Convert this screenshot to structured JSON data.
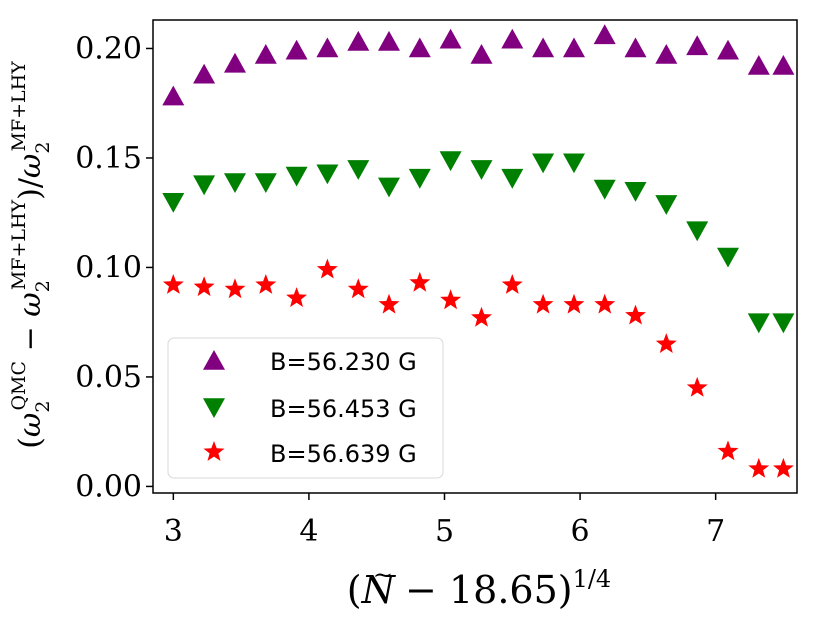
{
  "chart_data": {
    "type": "scatter",
    "xlabel": {
      "open": "(",
      "N": "N",
      "tilde": "~",
      "rest": " − 18.65)",
      "exp": "1/4"
    },
    "ylabel": {
      "open": "(",
      "omega1": "ω",
      "sub1": "2",
      "sup1": "QMC",
      "minus": " − ",
      "omega2": "ω",
      "sub2": "2",
      "sup2": "MF+LHY",
      "mid": ")/",
      "omega3": "ω",
      "sub3": "2",
      "sup3": "MF+LHY"
    },
    "xlim": [
      2.85,
      7.6
    ],
    "ylim": [
      -0.003,
      0.213
    ],
    "x_ticks": [
      3,
      4,
      5,
      6,
      7
    ],
    "x_tick_labels": [
      "3",
      "4",
      "5",
      "6",
      "7"
    ],
    "y_ticks": [
      0.0,
      0.05,
      0.1,
      0.15,
      0.2
    ],
    "y_tick_labels": [
      "0.00",
      "0.05",
      "0.10",
      "0.15",
      "0.20"
    ],
    "legend_position": "lower-left",
    "series": [
      {
        "name": "B=56.230 G",
        "marker": "triangle-up",
        "color": "#800080",
        "x": [
          3.0,
          3.227,
          3.455,
          3.682,
          3.909,
          4.136,
          4.364,
          4.591,
          4.818,
          5.045,
          5.273,
          5.5,
          5.727,
          5.955,
          6.182,
          6.409,
          6.636,
          6.864,
          7.091,
          7.318,
          7.5
        ],
        "y": [
          0.178,
          0.188,
          0.193,
          0.197,
          0.199,
          0.2,
          0.203,
          0.203,
          0.2,
          0.204,
          0.197,
          0.204,
          0.2,
          0.2,
          0.206,
          0.2,
          0.197,
          0.201,
          0.199,
          0.192,
          0.192
        ]
      },
      {
        "name": "B=56.453 G",
        "marker": "triangle-down",
        "color": "#008000",
        "x": [
          3.0,
          3.227,
          3.455,
          3.682,
          3.909,
          4.136,
          4.364,
          4.591,
          4.818,
          5.045,
          5.273,
          5.5,
          5.727,
          5.955,
          6.182,
          6.409,
          6.636,
          6.864,
          7.091,
          7.318,
          7.5
        ],
        "y": [
          0.13,
          0.138,
          0.139,
          0.139,
          0.142,
          0.143,
          0.145,
          0.137,
          0.141,
          0.149,
          0.145,
          0.141,
          0.148,
          0.148,
          0.136,
          0.135,
          0.129,
          0.117,
          0.105,
          0.075,
          0.075
        ]
      },
      {
        "name": "B=56.639 G",
        "marker": "star",
        "color": "#ff0000",
        "x": [
          3.0,
          3.227,
          3.455,
          3.682,
          3.909,
          4.136,
          4.364,
          4.591,
          4.818,
          5.045,
          5.273,
          5.5,
          5.727,
          5.955,
          6.182,
          6.409,
          6.636,
          6.864,
          7.091,
          7.318,
          7.5
        ],
        "y": [
          0.092,
          0.091,
          0.09,
          0.092,
          0.086,
          0.099,
          0.09,
          0.083,
          0.093,
          0.085,
          0.077,
          0.092,
          0.083,
          0.083,
          0.083,
          0.078,
          0.065,
          0.045,
          0.016,
          0.008,
          0.008
        ]
      }
    ]
  }
}
